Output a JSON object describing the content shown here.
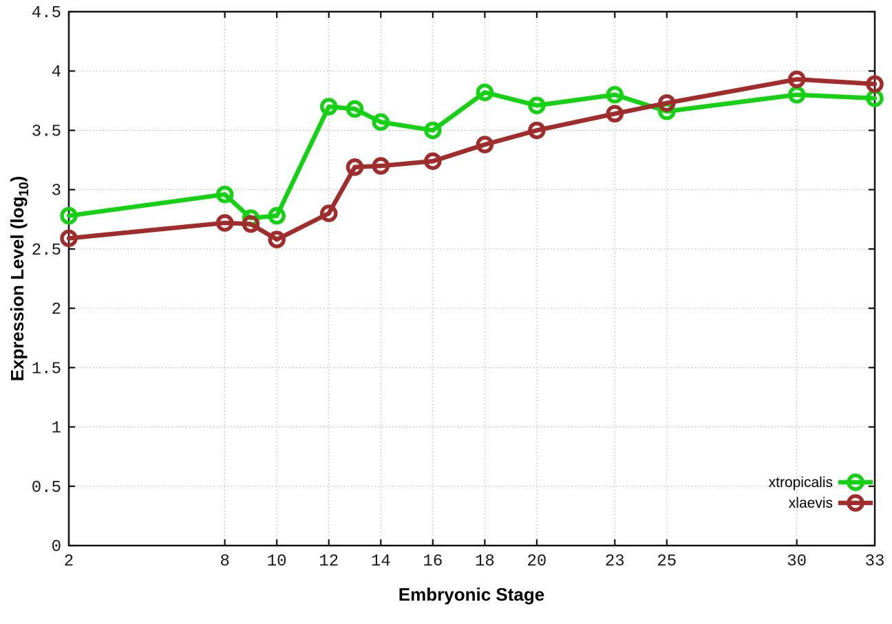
{
  "chart_data": {
    "type": "line",
    "title": "",
    "xlabel": "Embryonic Stage",
    "ylabel": "Expression Level (log10)",
    "ylabel_parts": {
      "main": "Expression Level (log",
      "sub": "10",
      "suffix": ")"
    },
    "x": [
      2,
      8,
      9,
      10,
      12,
      13,
      14,
      16,
      18,
      20,
      23,
      25,
      30,
      33
    ],
    "series": [
      {
        "name": "xtropicalis",
        "color": "#14d114",
        "values": [
          2.78,
          2.96,
          2.76,
          2.78,
          3.7,
          3.68,
          3.57,
          3.5,
          3.82,
          3.71,
          3.8,
          3.66,
          3.8,
          3.77
        ]
      },
      {
        "name": "xlaevis",
        "color": "#a12c2c",
        "values": [
          2.59,
          2.72,
          2.71,
          2.58,
          2.8,
          3.19,
          3.2,
          3.24,
          3.38,
          3.5,
          3.64,
          3.73,
          3.93,
          3.89
        ]
      }
    ],
    "xlim": [
      2,
      33
    ],
    "ylim": [
      0,
      4.5
    ],
    "xticks": [
      2,
      8,
      10,
      12,
      14,
      16,
      18,
      20,
      23,
      25,
      30,
      33
    ],
    "xtick_labels": [
      "2",
      "8",
      "10",
      "12",
      "14",
      "16",
      "18",
      "20",
      "23",
      "25",
      "30",
      "33"
    ],
    "yticks": [
      0,
      0.5,
      1,
      1.5,
      2,
      2.5,
      3,
      3.5,
      4,
      4.5
    ],
    "ytick_labels": [
      "0",
      "0.5",
      "1",
      "1.5",
      "2",
      "2.5",
      "3",
      "3.5",
      "4",
      "4.5"
    ],
    "grid": true,
    "legend_position": "bottom-right"
  },
  "colors": {
    "background": "#ffffff",
    "border": "#111111",
    "grid": "#b0b0b0",
    "tick_text": "#1a1a1a",
    "xtropicalis": "#14d114",
    "xlaevis": "#a12c2c"
  }
}
